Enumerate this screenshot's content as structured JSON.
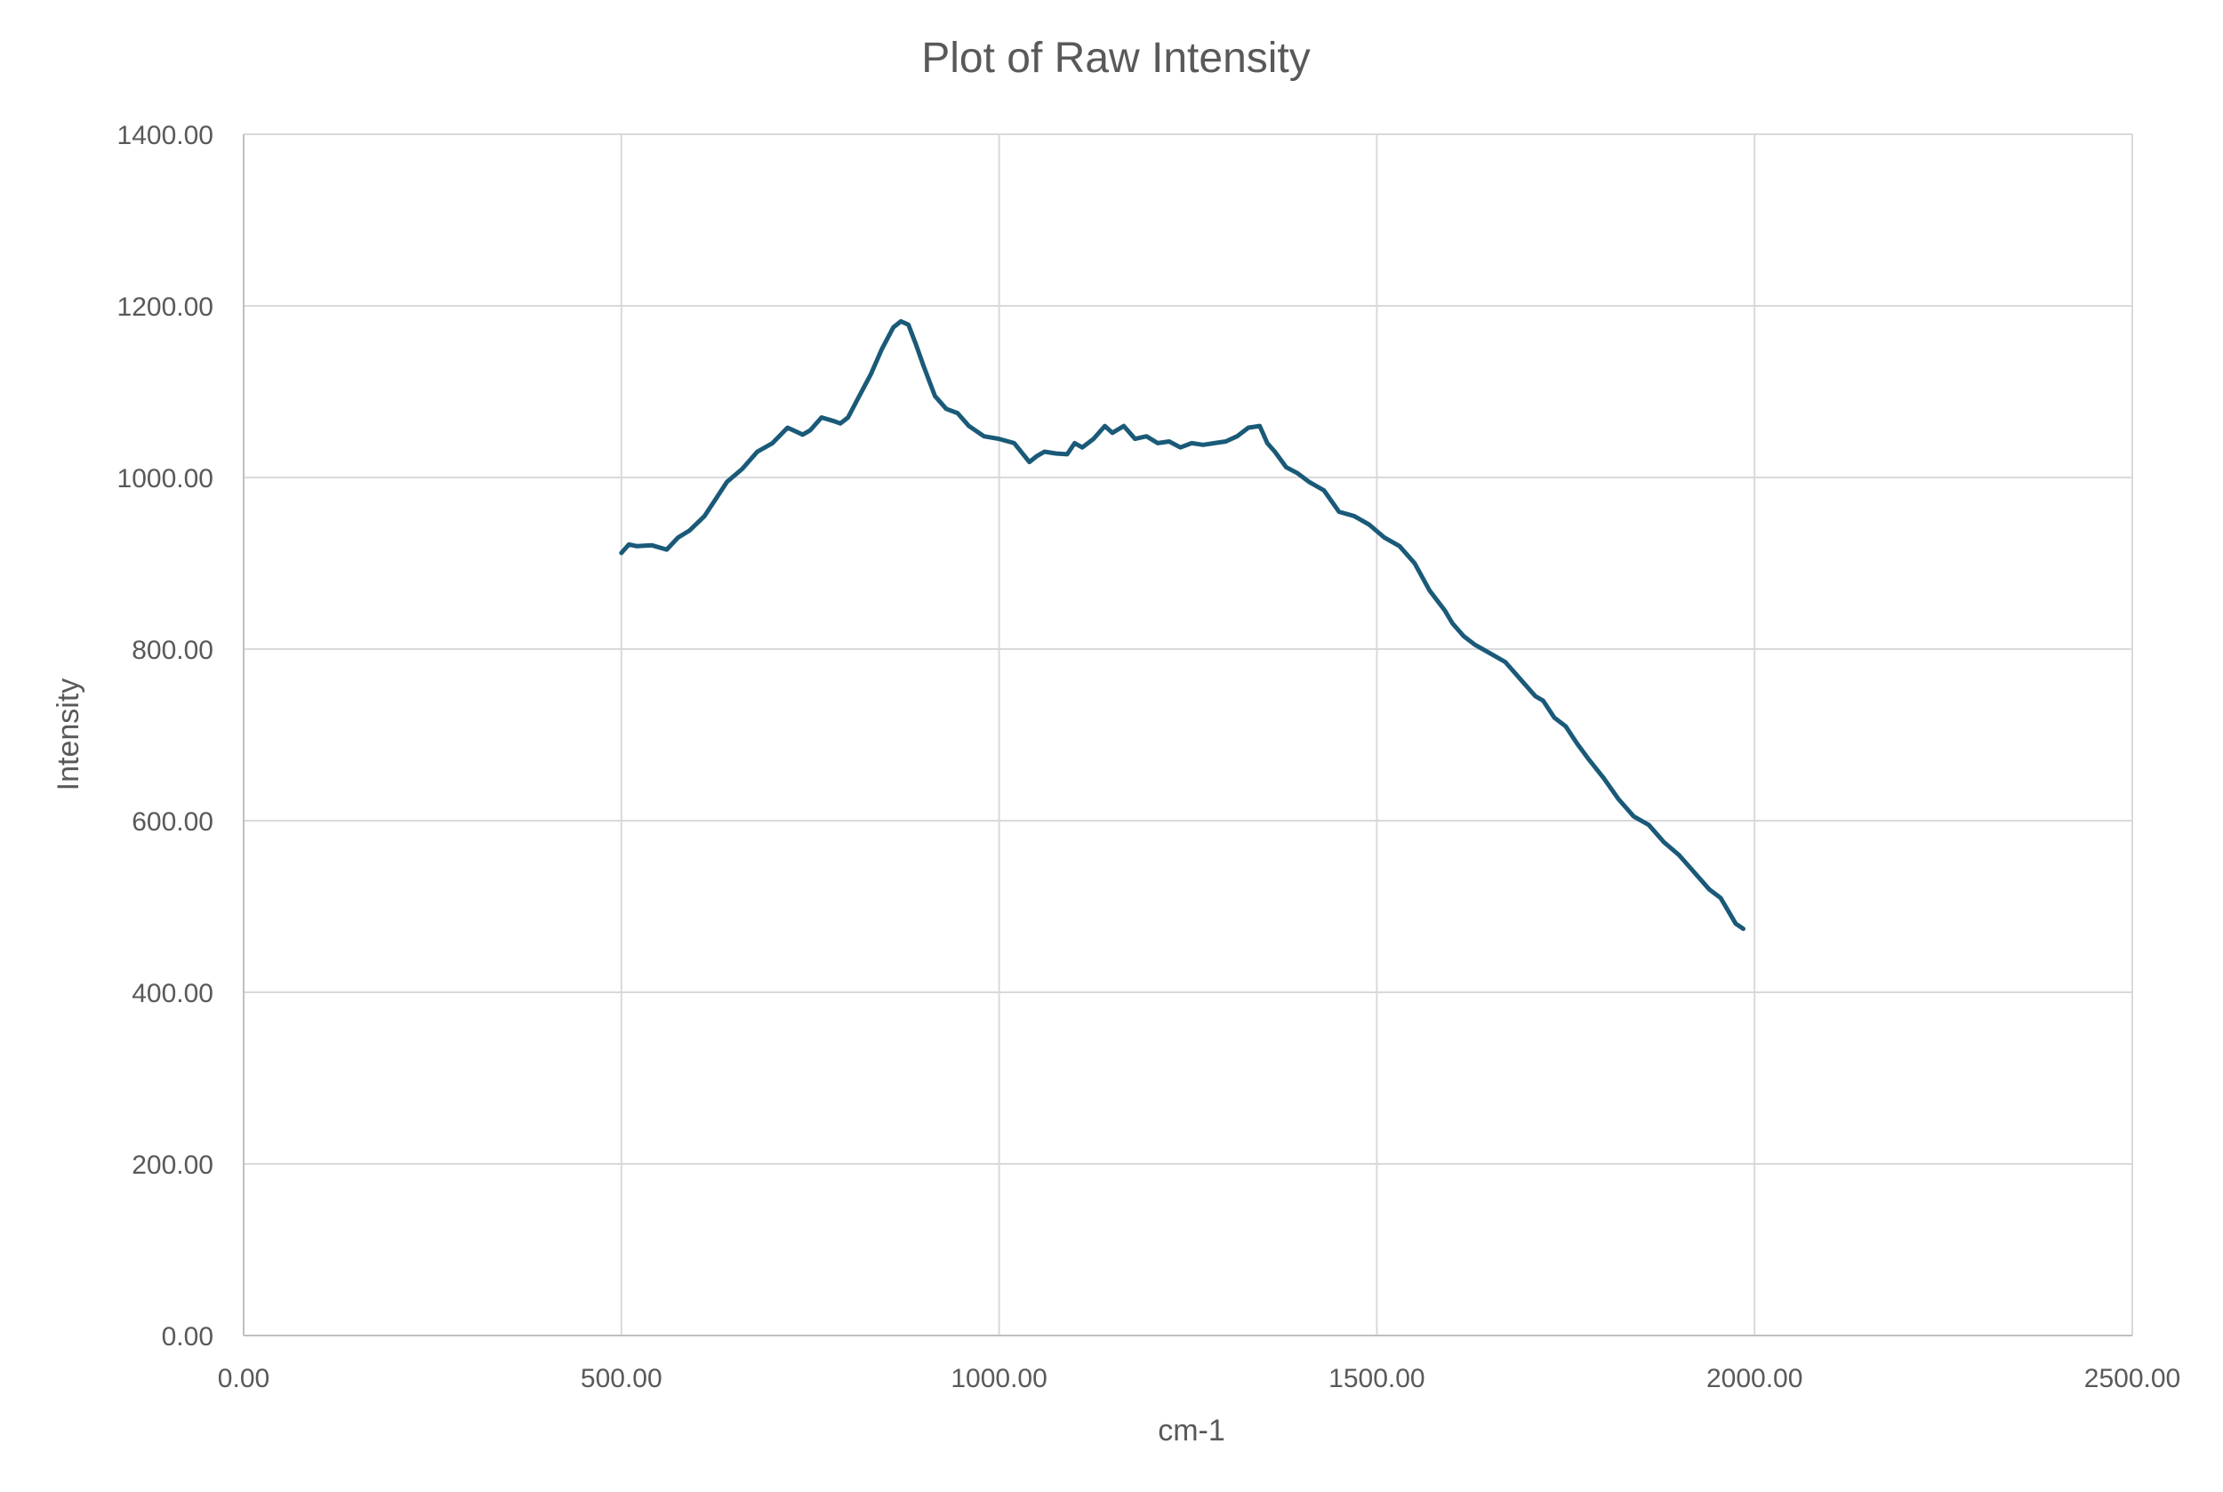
{
  "chart_data": {
    "type": "line",
    "title": "Plot of Raw Intensity",
    "xlabel": "cm-1",
    "ylabel": "Intensity",
    "xlim": [
      0,
      2500
    ],
    "ylim": [
      0,
      1400
    ],
    "x_ticks": [
      0,
      500,
      1000,
      1500,
      2000,
      2500
    ],
    "y_ticks": [
      0,
      200,
      400,
      600,
      800,
      1000,
      1200,
      1400
    ],
    "x_tick_labels": [
      "0.00",
      "500.00",
      "1000.00",
      "1500.00",
      "2000.00",
      "2500.00"
    ],
    "y_tick_labels": [
      "0.00",
      "200.00",
      "400.00",
      "600.00",
      "800.00",
      "1000.00",
      "1200.00",
      "1400.00"
    ],
    "grid": true,
    "legend": false,
    "colors": {
      "series": "#1a5a78",
      "grid": "#d9d9d9",
      "text": "#595959"
    },
    "series": [
      {
        "name": "Raw Intensity",
        "x": [
          500,
          510,
          520,
          540,
          560,
          575,
          590,
          610,
          625,
          640,
          660,
          680,
          700,
          720,
          740,
          750,
          765,
          780,
          790,
          800,
          815,
          830,
          845,
          860,
          870,
          880,
          890,
          900,
          915,
          930,
          945,
          960,
          980,
          1000,
          1020,
          1040,
          1050,
          1060,
          1075,
          1090,
          1100,
          1110,
          1125,
          1140,
          1150,
          1165,
          1180,
          1195,
          1210,
          1225,
          1240,
          1255,
          1270,
          1285,
          1300,
          1315,
          1330,
          1345,
          1355,
          1365,
          1380,
          1395,
          1410,
          1430,
          1450,
          1470,
          1490,
          1510,
          1530,
          1550,
          1570,
          1590,
          1600,
          1615,
          1630,
          1650,
          1670,
          1690,
          1710,
          1720,
          1735,
          1750,
          1765,
          1780,
          1800,
          1820,
          1840,
          1860,
          1880,
          1900,
          1920,
          1940,
          1955,
          1965,
          1975,
          1985
        ],
        "y": [
          912,
          922,
          920,
          921,
          916,
          930,
          938,
          955,
          975,
          995,
          1010,
          1030,
          1040,
          1058,
          1050,
          1055,
          1070,
          1066,
          1063,
          1070,
          1095,
          1120,
          1150,
          1175,
          1182,
          1178,
          1155,
          1130,
          1095,
          1080,
          1075,
          1060,
          1048,
          1045,
          1040,
          1018,
          1025,
          1030,
          1028,
          1027,
          1040,
          1035,
          1045,
          1060,
          1052,
          1060,
          1045,
          1048,
          1040,
          1042,
          1035,
          1040,
          1038,
          1040,
          1042,
          1048,
          1058,
          1060,
          1040,
          1030,
          1012,
          1005,
          995,
          985,
          960,
          955,
          945,
          930,
          920,
          900,
          868,
          845,
          830,
          815,
          805,
          795,
          785,
          765,
          745,
          740,
          720,
          710,
          690,
          672,
          650,
          625,
          605,
          595,
          575,
          560,
          540,
          520,
          510,
          495,
          480,
          474
        ]
      }
    ]
  }
}
